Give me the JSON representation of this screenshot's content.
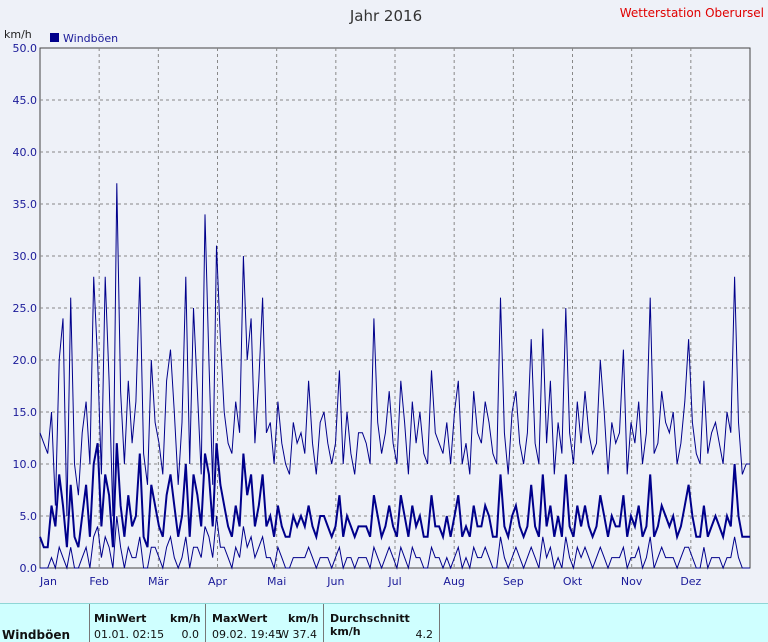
{
  "header": {
    "title": "Jahr 2016",
    "station": "Wetterstation Oberursel"
  },
  "chart_data": {
    "type": "line",
    "ylabel": "km/h",
    "ylim": [
      0,
      50
    ],
    "y_ticks": [
      "0.0",
      "5.0",
      "10.0",
      "15.0",
      "20.0",
      "25.0",
      "30.0",
      "35.0",
      "40.0",
      "45.0",
      "50.0"
    ],
    "x_ticks": [
      "Jan",
      "Feb",
      "Mär",
      "Apr",
      "Mai",
      "Jun",
      "Jul",
      "Aug",
      "Sep",
      "Okt",
      "Nov",
      "Dez"
    ],
    "grid": true,
    "legend": {
      "position": "top-left",
      "entries": [
        "Windböen"
      ]
    },
    "series": [
      {
        "name": "Windböen",
        "color": "#00008b",
        "values": [
          13,
          12,
          11,
          15,
          6,
          20,
          24,
          5,
          26,
          10,
          7,
          13,
          16,
          10,
          28,
          20,
          9,
          28,
          18,
          5,
          37,
          17,
          10,
          18,
          12,
          16,
          28,
          11,
          8,
          20,
          14,
          12,
          9,
          18,
          21,
          15,
          8,
          14,
          28,
          10,
          25,
          17,
          9,
          34,
          20,
          8,
          31,
          22,
          15,
          12,
          11,
          16,
          13,
          30,
          20,
          24,
          12,
          18,
          26,
          13,
          14,
          10,
          16,
          12,
          10,
          9,
          14,
          12,
          13,
          11,
          18,
          12,
          9,
          14,
          15,
          12,
          10,
          12,
          19,
          10,
          15,
          11,
          9,
          13,
          13,
          12,
          10,
          24,
          14,
          11,
          13,
          17,
          12,
          10,
          18,
          14,
          9,
          16,
          12,
          15,
          11,
          10,
          19,
          13,
          12,
          11,
          14,
          10,
          15,
          18,
          10,
          12,
          9,
          17,
          13,
          12,
          16,
          14,
          11,
          10,
          26,
          13,
          9,
          15,
          17,
          12,
          10,
          13,
          22,
          12,
          10,
          23,
          12,
          18,
          9,
          14,
          11,
          25,
          13,
          10,
          16,
          12,
          17,
          13,
          11,
          12,
          20,
          15,
          9,
          14,
          12,
          13,
          21,
          9,
          14,
          12,
          16,
          10,
          13,
          26,
          11,
          12,
          17,
          14,
          13,
          15,
          10,
          12,
          16,
          22,
          14,
          11,
          10,
          18,
          11,
          13,
          14,
          12,
          10,
          15,
          13,
          28,
          14,
          9,
          10,
          10
        ]
      },
      {
        "name": "",
        "color": "#00008b",
        "values": [
          3,
          2,
          2,
          6,
          4,
          9,
          6,
          2,
          8,
          3,
          2,
          5,
          8,
          3,
          10,
          12,
          4,
          9,
          7,
          2,
          12,
          6,
          3,
          7,
          4,
          5,
          11,
          3,
          2,
          8,
          6,
          4,
          3,
          7,
          9,
          6,
          3,
          5,
          10,
          3,
          9,
          7,
          4,
          11,
          9,
          4,
          12,
          8,
          6,
          4,
          3,
          6,
          4,
          11,
          7,
          9,
          4,
          6,
          9,
          4,
          5,
          3,
          6,
          4,
          3,
          3,
          5,
          4,
          5,
          4,
          6,
          4,
          3,
          5,
          5,
          4,
          3,
          4,
          7,
          3,
          5,
          4,
          3,
          4,
          4,
          4,
          3,
          7,
          5,
          3,
          4,
          6,
          4,
          3,
          7,
          5,
          3,
          6,
          4,
          5,
          3,
          3,
          7,
          4,
          4,
          3,
          5,
          3,
          5,
          7,
          3,
          4,
          3,
          6,
          4,
          4,
          6,
          5,
          3,
          3,
          9,
          4,
          3,
          5,
          6,
          4,
          3,
          4,
          8,
          4,
          3,
          9,
          4,
          6,
          3,
          5,
          3,
          9,
          4,
          3,
          6,
          4,
          6,
          4,
          3,
          4,
          7,
          5,
          3,
          5,
          4,
          4,
          7,
          3,
          5,
          4,
          6,
          3,
          4,
          9,
          3,
          4,
          6,
          5,
          4,
          5,
          3,
          4,
          6,
          8,
          5,
          3,
          3,
          6,
          3,
          4,
          5,
          4,
          3,
          5,
          4,
          10,
          5,
          3,
          3,
          3
        ]
      },
      {
        "name": "",
        "color": "#00008b",
        "values": [
          0,
          0,
          0,
          1,
          0,
          2,
          1,
          0,
          2,
          0,
          0,
          1,
          2,
          0,
          3,
          4,
          1,
          3,
          2,
          0,
          5,
          2,
          0,
          2,
          1,
          1,
          3,
          0,
          0,
          2,
          2,
          1,
          0,
          2,
          3,
          1,
          0,
          1,
          3,
          0,
          2,
          2,
          1,
          4,
          3,
          1,
          5,
          2,
          2,
          1,
          0,
          2,
          1,
          4,
          2,
          3,
          1,
          2,
          3,
          1,
          1,
          0,
          2,
          1,
          0,
          0,
          1,
          1,
          1,
          1,
          2,
          1,
          0,
          1,
          1,
          1,
          0,
          1,
          2,
          0,
          1,
          1,
          0,
          1,
          1,
          1,
          0,
          2,
          1,
          0,
          1,
          2,
          1,
          0,
          2,
          1,
          0,
          2,
          1,
          1,
          0,
          0,
          2,
          1,
          1,
          0,
          1,
          0,
          1,
          2,
          0,
          1,
          0,
          2,
          1,
          1,
          2,
          1,
          0,
          0,
          3,
          1,
          0,
          1,
          2,
          1,
          0,
          1,
          2,
          1,
          0,
          3,
          1,
          2,
          0,
          1,
          0,
          3,
          1,
          0,
          2,
          1,
          2,
          1,
          0,
          1,
          2,
          1,
          0,
          1,
          1,
          1,
          2,
          0,
          1,
          1,
          2,
          0,
          1,
          3,
          0,
          1,
          2,
          1,
          1,
          1,
          0,
          1,
          2,
          2,
          1,
          0,
          0,
          2,
          0,
          1,
          1,
          1,
          0,
          1,
          1,
          3,
          1,
          0,
          0,
          0
        ]
      }
    ]
  },
  "summary": {
    "row_label": "Windböen",
    "min": {
      "header": "MinWert",
      "unit": "km/h",
      "datetime": "01.01.  02:15",
      "value": "0.0"
    },
    "max": {
      "header": "MaxWert",
      "unit": "km/h",
      "datetime": "09.02.  19:45",
      "value": "W 37.4"
    },
    "avg": {
      "header": "Durchschnitt km/h",
      "value": "4.2"
    }
  }
}
